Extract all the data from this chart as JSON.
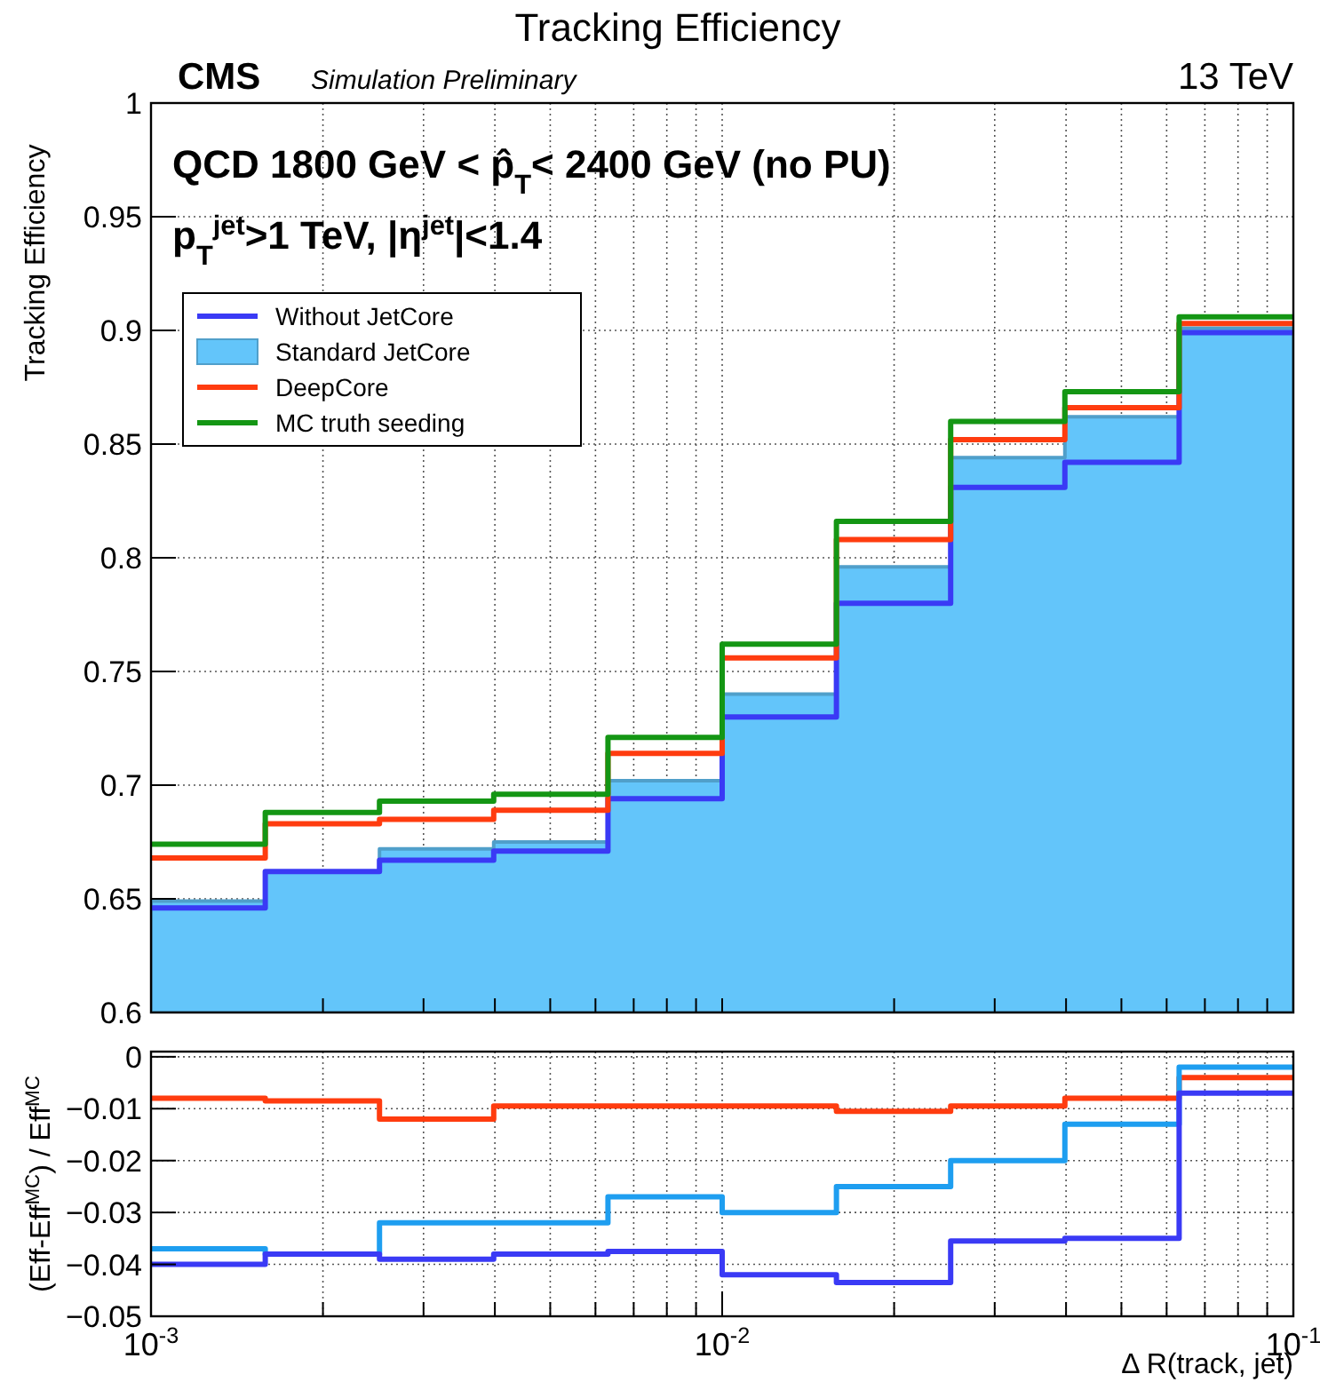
{
  "chart_data": [
    {
      "type": "step",
      "title": "Tracking Efficiency",
      "ylabel": "Tracking Efficiency",
      "annotations": [
        "CMS",
        "Simulation Preliminary",
        "13 TeV",
        "QCD 1800 GeV < p̂$_{T}$< 2400 GeV (no PU)",
        "p$_{T}$$^{jet}$>1 TeV, |η$^{jet}$|<1.4"
      ],
      "x": [
        0.001,
        0.001585,
        0.002512,
        0.003981,
        0.00631,
        0.01,
        0.01585,
        0.02512,
        0.03981,
        0.0631,
        0.1
      ],
      "series": [
        {
          "name": "Without JetCore",
          "color": "#3a3af5",
          "values": [
            0.646,
            0.662,
            0.667,
            0.671,
            0.694,
            0.73,
            0.78,
            0.831,
            0.842,
            0.899,
            0.899
          ]
        },
        {
          "name": "Standard JetCore",
          "type": "area",
          "color": "#63c5fa",
          "values": [
            0.649,
            0.662,
            0.672,
            0.675,
            0.702,
            0.74,
            0.796,
            0.844,
            0.862,
            0.901,
            0.901
          ]
        },
        {
          "name": "DeepCore",
          "color": "#ff3c0f",
          "values": [
            0.668,
            0.683,
            0.685,
            0.689,
            0.714,
            0.756,
            0.808,
            0.852,
            0.866,
            0.903,
            0.903
          ]
        },
        {
          "name": "MC truth seeding",
          "color": "#149614",
          "values": [
            0.674,
            0.688,
            0.693,
            0.696,
            0.721,
            0.762,
            0.816,
            0.86,
            0.873,
            0.906,
            0.906
          ]
        }
      ],
      "xlim": [
        0.001,
        0.1
      ],
      "xticks": [
        {
          "value": 0.001,
          "label": null
        },
        {
          "value": 0.002,
          "label": null
        },
        {
          "value": 0.003,
          "label": null
        },
        {
          "value": 0.004,
          "label": null
        },
        {
          "value": 0.005,
          "label": null
        },
        {
          "value": 0.006,
          "label": null
        },
        {
          "value": 0.007,
          "label": null
        },
        {
          "value": 0.008,
          "label": null
        },
        {
          "value": 0.009,
          "label": null
        },
        {
          "value": 0.01,
          "label": null
        },
        {
          "value": 0.02,
          "label": null
        },
        {
          "value": 0.03,
          "label": null
        },
        {
          "value": 0.04,
          "label": null
        },
        {
          "value": 0.05,
          "label": null
        },
        {
          "value": 0.06,
          "label": null
        },
        {
          "value": 0.07,
          "label": null
        },
        {
          "value": 0.08,
          "label": null
        },
        {
          "value": 0.09,
          "label": null
        },
        {
          "value": 0.1,
          "label": null
        }
      ],
      "log": "x",
      "ylim": [
        0.6,
        1
      ],
      "yticks": [
        0.6,
        0.65,
        0.7,
        0.75,
        0.8,
        0.85,
        0.9,
        0.95,
        1
      ],
      "grid": true,
      "legend": "top left",
      "tick_labels": "y"
    },
    {
      "type": "step",
      "xlabel": "Δ R(track, jet)",
      "ylabel": "(Eff-Eff$^{MC}$) / Eff$^{MC}$",
      "x": [
        0.001,
        0.001585,
        0.002512,
        0.003981,
        0.00631,
        0.01,
        0.01585,
        0.02512,
        0.03981,
        0.0631,
        0.1
      ],
      "series": [
        {
          "color": "#ff3c0f",
          "values": [
            -0.008,
            -0.0085,
            -0.012,
            -0.0095,
            -0.0095,
            -0.0095,
            -0.0105,
            -0.0095,
            -0.008,
            -0.004,
            -0.004
          ]
        },
        {
          "color": "#1e9ef0",
          "values": [
            -0.037,
            -0.038,
            -0.032,
            -0.032,
            -0.027,
            -0.03,
            -0.025,
            -0.02,
            -0.013,
            -0.002,
            -0.002
          ]
        },
        {
          "color": "#3a3af5",
          "values": [
            -0.04,
            -0.038,
            -0.039,
            -0.038,
            -0.0375,
            -0.042,
            -0.0435,
            -0.0355,
            -0.035,
            -0.007,
            -0.007
          ]
        }
      ],
      "xlim": [
        0.001,
        0.1
      ],
      "xticks": [
        {
          "value": 0.001,
          "label": "10$^{-3}$"
        },
        {
          "value": 0.002,
          "label": null
        },
        {
          "value": 0.003,
          "label": null
        },
        {
          "value": 0.004,
          "label": null
        },
        {
          "value": 0.005,
          "label": null
        },
        {
          "value": 0.006,
          "label": null
        },
        {
          "value": 0.007,
          "label": null
        },
        {
          "value": 0.008,
          "label": null
        },
        {
          "value": 0.009,
          "label": null
        },
        {
          "value": 0.01,
          "label": "10$^{-2}$"
        },
        {
          "value": 0.02,
          "label": null
        },
        {
          "value": 0.03,
          "label": null
        },
        {
          "value": 0.04,
          "label": null
        },
        {
          "value": 0.05,
          "label": null
        },
        {
          "value": 0.06,
          "label": null
        },
        {
          "value": 0.07,
          "label": null
        },
        {
          "value": 0.08,
          "label": null
        },
        {
          "value": 0.09,
          "label": null
        },
        {
          "value": 0.1,
          "label": "10$^{-1}$"
        }
      ],
      "log": "x",
      "ylim": [
        -0.05,
        0.001
      ],
      "yticks": [
        {
          "value": -0.05,
          "label": "−0.05"
        },
        {
          "value": -0.04,
          "label": "−0.04"
        },
        {
          "value": -0.03,
          "label": "−0.03"
        },
        {
          "value": -0.02,
          "label": "−0.02"
        },
        {
          "value": -0.01,
          "label": "−0.01"
        },
        {
          "value": 0,
          "label": "0"
        }
      ],
      "grid": true
    }
  ]
}
